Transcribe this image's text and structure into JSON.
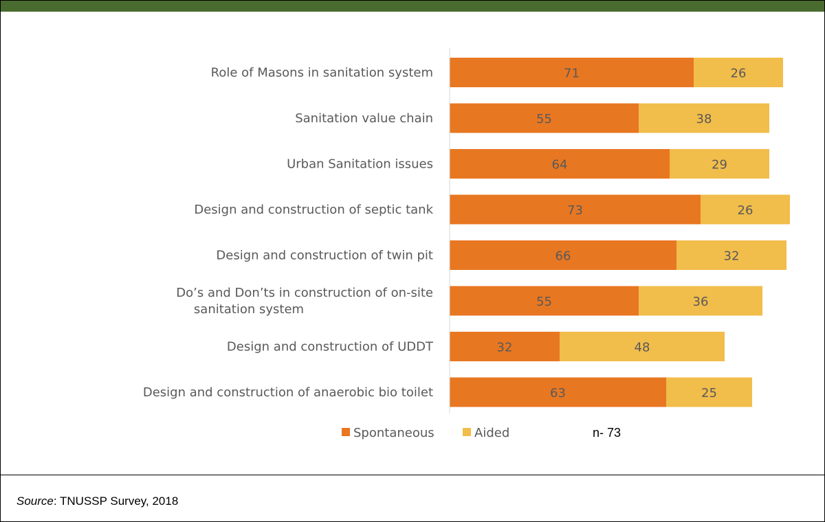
{
  "chart_data": {
    "type": "bar",
    "orientation": "horizontal",
    "stacked": true,
    "categories": [
      "Role of Masons in sanitation system",
      "Sanitation value chain",
      "Urban Sanitation issues",
      "Design and construction of septic tank",
      "Design and construction of twin pit",
      "Do’s and Don’ts in construction of on-site sanitation system",
      "Design and construction of UDDT",
      "Design and construction of anaerobic bio toilet"
    ],
    "series": [
      {
        "name": "Spontaneous",
        "color": "#e87722",
        "values": [
          71,
          55,
          64,
          73,
          66,
          55,
          32,
          63
        ]
      },
      {
        "name": "Aided",
        "color": "#f1bd4b",
        "values": [
          26,
          38,
          29,
          26,
          32,
          36,
          48,
          25
        ]
      }
    ],
    "xlim": [
      0,
      100
    ],
    "grid": false,
    "legend_position": "bottom",
    "data_labels": true
  },
  "note": "n- 73",
  "source": {
    "label": "Source",
    "text": ": TNUSSP Survey, 2018"
  }
}
